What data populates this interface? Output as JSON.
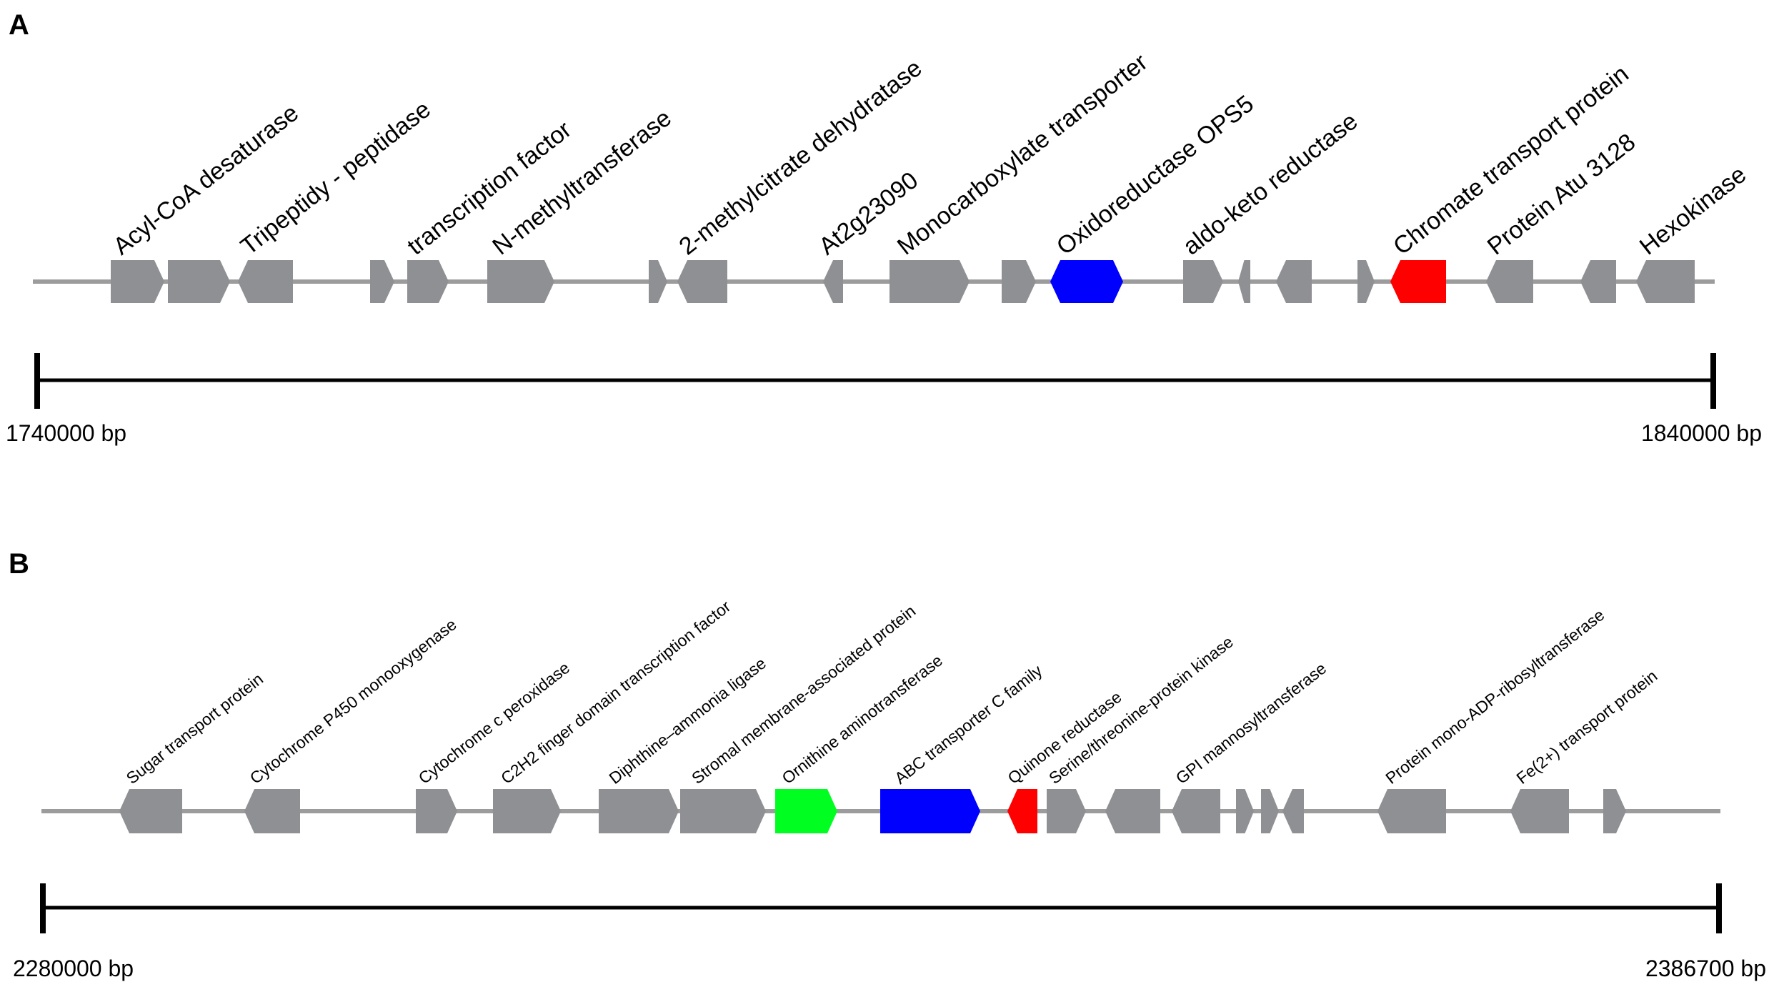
{
  "panels": [
    {
      "letter": "A",
      "start_label": "1740000 bp",
      "end_label": "1840000 bp",
      "genes": [
        {
          "label": "Acyl-CoA desaturase",
          "color": "gray",
          "dir": "right"
        },
        {
          "label": "",
          "color": "gray",
          "dir": "right"
        },
        {
          "label": "Tripeptidy - peptidase",
          "color": "gray",
          "dir": "left"
        },
        {
          "label": "",
          "color": "gray",
          "dir": "right"
        },
        {
          "label": "transcription factor",
          "color": "gray",
          "dir": "right"
        },
        {
          "label": "N-methyltransferase",
          "color": "gray",
          "dir": "right"
        },
        {
          "label": "",
          "color": "gray",
          "dir": "right"
        },
        {
          "label": "2-methylcitrate dehydratase",
          "color": "gray",
          "dir": "left"
        },
        {
          "label": "At2g23090",
          "color": "gray",
          "dir": "left"
        },
        {
          "label": "Monocarboxylate transporter",
          "color": "gray",
          "dir": "right"
        },
        {
          "label": "",
          "color": "gray",
          "dir": "right"
        },
        {
          "label": "Oxidoreductase OPS5",
          "color": "blue",
          "dir": "both"
        },
        {
          "label": "aldo-keto reductase",
          "color": "gray",
          "dir": "right"
        },
        {
          "label": "",
          "color": "gray",
          "dir": "left"
        },
        {
          "label": "",
          "color": "gray",
          "dir": "left"
        },
        {
          "label": "",
          "color": "gray",
          "dir": "right"
        },
        {
          "label": "Chromate transport protein",
          "color": "red",
          "dir": "left"
        },
        {
          "label": "Protein Atu 3128",
          "color": "gray",
          "dir": "left"
        },
        {
          "label": "",
          "color": "gray",
          "dir": "left"
        },
        {
          "label": "Hexokinase",
          "color": "gray",
          "dir": "left"
        }
      ]
    },
    {
      "letter": "B",
      "start_label": "2280000 bp",
      "end_label": "2386700 bp",
      "genes": [
        {
          "label": "Sugar transport protein",
          "color": "gray",
          "dir": "left"
        },
        {
          "label": "Cytochrome P450 monooxygenase",
          "color": "gray",
          "dir": "left"
        },
        {
          "label": "Cytochrome c peroxidase",
          "color": "gray",
          "dir": "right"
        },
        {
          "label": "C2H2 finger domain transcription factor",
          "color": "gray",
          "dir": "right"
        },
        {
          "label": "Diphthine–ammonia ligase",
          "color": "gray",
          "dir": "right"
        },
        {
          "label": "Stromal membrane-associated protein",
          "color": "gray",
          "dir": "right"
        },
        {
          "label": "Ornithine aminotransferase",
          "color": "green",
          "dir": "right"
        },
        {
          "label": "ABC transporter C family",
          "color": "blue",
          "dir": "right"
        },
        {
          "label": "Quinone reductase",
          "color": "red",
          "dir": "left"
        },
        {
          "label": "Serine/threonine-protein kinase",
          "color": "gray",
          "dir": "right"
        },
        {
          "label": "",
          "color": "gray",
          "dir": "left"
        },
        {
          "label": "GPI mannosyltransferase",
          "color": "gray",
          "dir": "left"
        },
        {
          "label": "",
          "color": "gray",
          "dir": "right"
        },
        {
          "label": "",
          "color": "gray",
          "dir": "right"
        },
        {
          "label": "",
          "color": "gray",
          "dir": "left"
        },
        {
          "label": "Protein mono-ADP-ribosyltransferase",
          "color": "gray",
          "dir": "left"
        },
        {
          "label": "Fe(2+) transport protein",
          "color": "gray",
          "dir": "left"
        },
        {
          "label": "",
          "color": "gray",
          "dir": "right"
        }
      ]
    }
  ],
  "colors": {
    "gray": "#8f9093",
    "blue": "#0000ff",
    "red": "#ff0000",
    "green": "#00ff21",
    "backbone": "#9c9c9c",
    "scale": "#000000"
  }
}
